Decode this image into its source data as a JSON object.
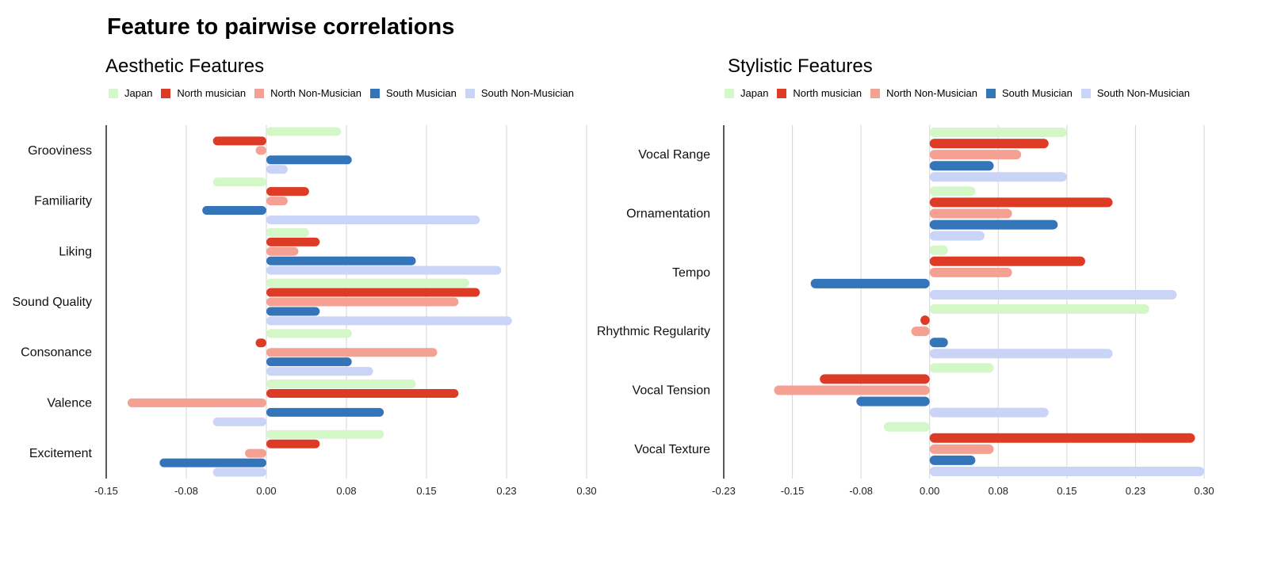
{
  "title": "Feature to pairwise correlations",
  "colors": {
    "Japan": "#d4f7c8",
    "North musician": "#de3b26",
    "North Non-Musician": "#f4a193",
    "South Musician": "#3474b8",
    "South Non-Musician": "#c9d4f7"
  },
  "chart_data": [
    {
      "type": "bar",
      "orientation": "horizontal",
      "title": "Aesthetic Features",
      "legend_position": "top-left",
      "grid": true,
      "categories": [
        "Grooviness",
        "Familiarity",
        "Liking",
        "Sound Quality",
        "Consonance",
        "Valence",
        "Excitement"
      ],
      "xlim": [
        -0.15,
        0.3
      ],
      "ticks": [
        "-0.15",
        "-0.08",
        "0.00",
        "0.08",
        "0.15",
        "0.23",
        "0.30"
      ],
      "series": [
        {
          "name": "Japan",
          "values": [
            0.07,
            -0.05,
            0.04,
            0.19,
            0.08,
            0.14,
            0.11
          ]
        },
        {
          "name": "North musician",
          "values": [
            -0.05,
            0.04,
            0.05,
            0.2,
            -0.01,
            0.18,
            0.05
          ]
        },
        {
          "name": "North Non-Musician",
          "values": [
            -0.01,
            0.02,
            0.03,
            0.18,
            0.16,
            -0.13,
            -0.02
          ]
        },
        {
          "name": "South Musician",
          "values": [
            0.08,
            -0.06,
            0.14,
            0.05,
            0.08,
            0.11,
            -0.1
          ]
        },
        {
          "name": "South Non-Musician",
          "values": [
            0.02,
            0.2,
            0.22,
            0.23,
            0.1,
            -0.05,
            -0.05
          ]
        }
      ]
    },
    {
      "type": "bar",
      "orientation": "horizontal",
      "title": "Stylistic Features",
      "legend_position": "top-left",
      "grid": true,
      "categories": [
        "Vocal Range",
        "Ornamentation",
        "Tempo",
        "Rhythmic Regularity",
        "Vocal Tension",
        "Vocal Texture"
      ],
      "xlim": [
        -0.225,
        0.3
      ],
      "ticks": [
        "-0.23",
        "-0.15",
        "-0.08",
        "0.00",
        "0.08",
        "0.15",
        "0.23",
        "0.30"
      ],
      "series": [
        {
          "name": "Japan",
          "values": [
            0.15,
            0.05,
            0.02,
            0.24,
            0.07,
            -0.05
          ]
        },
        {
          "name": "North musician",
          "values": [
            0.13,
            0.2,
            0.17,
            -0.01,
            -0.12,
            0.29
          ]
        },
        {
          "name": "North Non-Musician",
          "values": [
            0.1,
            0.09,
            0.09,
            -0.02,
            -0.17,
            0.07
          ]
        },
        {
          "name": "South Musician",
          "values": [
            0.07,
            0.14,
            -0.13,
            0.02,
            -0.08,
            0.05
          ]
        },
        {
          "name": "South Non-Musician",
          "values": [
            0.15,
            0.06,
            0.27,
            0.2,
            0.13,
            0.3
          ]
        }
      ]
    }
  ]
}
